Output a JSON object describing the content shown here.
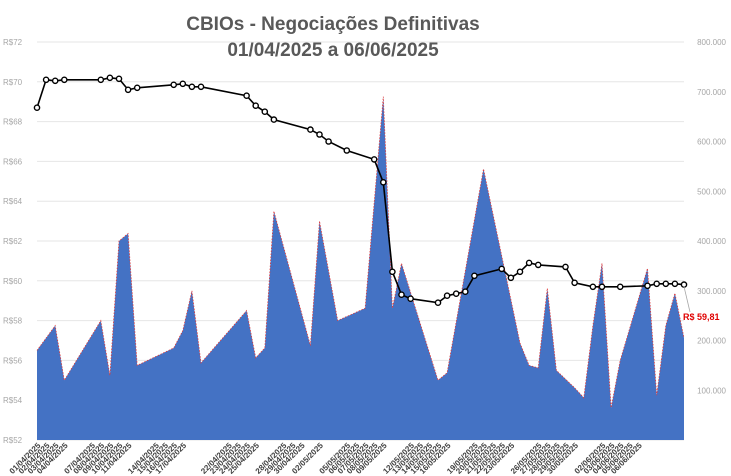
{
  "chart_data": {
    "type": "line+area",
    "title": "CBIOs - Negociações Definitivas",
    "subtitle": "01/04/2025 a 06/06/2025",
    "y_left": {
      "range": [
        52,
        72
      ],
      "ticks": [
        52,
        54,
        56,
        58,
        60,
        62,
        64,
        66,
        68,
        70,
        72
      ],
      "tick_labels": [
        "R$52",
        "R$54",
        "R$56",
        "R$58",
        "R$60",
        "R$62",
        "R$64",
        "R$66",
        "R$68",
        "R$70",
        "R$72"
      ]
    },
    "y_right": {
      "range": [
        0,
        800000
      ],
      "ticks": [
        100000,
        200000,
        300000,
        400000,
        500000,
        600000,
        700000,
        800000
      ],
      "tick_labels": [
        "100.000",
        "200.000",
        "300.000",
        "400.000",
        "500.000",
        "600.000",
        "700.000",
        "800.000"
      ]
    },
    "x": [
      "01/04/2025",
      "02/04/2025",
      "03/04/2025",
      "04/04/2025",
      "07/04/2025",
      "08/04/2025",
      "09/04/2025",
      "10/04/2025",
      "11/04/2025",
      "14/04/2025",
      "15/04/2025",
      "16/04/2025",
      "17/04/2025",
      "22/04/2025",
      "23/04/2025",
      "24/04/2025",
      "25/04/2025",
      "28/04/2025",
      "29/04/2025",
      "30/04/2025",
      "02/05/2025",
      "05/05/2025",
      "06/05/2025",
      "07/05/2025",
      "08/05/2025",
      "09/05/2025",
      "12/05/2025",
      "13/05/2025",
      "14/05/2025",
      "15/05/2025",
      "16/05/2025",
      "19/05/2025",
      "20/05/2025",
      "21/05/2025",
      "22/05/2025",
      "23/05/2025",
      "26/05/2025",
      "27/05/2025",
      "28/05/2025",
      "29/05/2025",
      "30/05/2025",
      "02/06/2025",
      "03/06/2025",
      "04/06/2025",
      "05/06/2025",
      "06/06/2025"
    ],
    "x_label_format": "dd/mm/yyyy",
    "series": [
      {
        "axis": "right",
        "style": "area",
        "color": "#4472c4",
        "edge_color": "#e03a3a",
        "points": [
          [
            "01/04/2025",
            180000
          ],
          [
            "03/04/2025",
            230000
          ],
          [
            "04/04/2025",
            120000
          ],
          [
            "08/04/2025",
            240000
          ],
          [
            "09/04/2025",
            130000
          ],
          [
            "10/04/2025",
            400000
          ],
          [
            "11/04/2025",
            415000
          ],
          [
            "12/04/2025",
            150000
          ],
          [
            "16/04/2025",
            185000
          ],
          [
            "17/04/2025",
            220000
          ],
          [
            "18/04/2025",
            300000
          ],
          [
            "19/04/2025",
            155000
          ],
          [
            "24/04/2025",
            260000
          ],
          [
            "25/04/2025",
            165000
          ],
          [
            "26/04/2025",
            185000
          ],
          [
            "27/04/2025",
            460000
          ],
          [
            "01/05/2025",
            190000
          ],
          [
            "02/05/2025",
            440000
          ],
          [
            "04/05/2025",
            240000
          ],
          [
            "07/05/2025",
            265000
          ],
          [
            "09/05/2025",
            690000
          ],
          [
            "10/05/2025",
            265000
          ],
          [
            "11/05/2025",
            355000
          ],
          [
            "15/05/2025",
            120000
          ],
          [
            "16/05/2025",
            135000
          ],
          [
            "20/05/2025",
            545000
          ],
          [
            "24/05/2025",
            195000
          ],
          [
            "25/05/2025",
            150000
          ],
          [
            "26/05/2025",
            145000
          ],
          [
            "27/05/2025",
            305000
          ],
          [
            "28/05/2025",
            140000
          ],
          [
            "30/05/2025",
            105000
          ],
          [
            "31/05/2025",
            85000
          ],
          [
            "01/06/2025",
            230000
          ],
          [
            "02/06/2025",
            355000
          ],
          [
            "03/06/2025",
            65000
          ],
          [
            "04/06/2025",
            160000
          ],
          [
            "07/06/2025",
            345000
          ],
          [
            "08/06/2025",
            90000
          ],
          [
            "09/06/2025",
            230000
          ],
          [
            "10/06/2025",
            295000
          ],
          [
            "11/06/2025",
            205000
          ]
        ]
      },
      {
        "axis": "left",
        "style": "line-markers",
        "color": "#000000",
        "points": [
          [
            "01/04/2025",
            68.7
          ],
          [
            "02/04/2025",
            70.1
          ],
          [
            "03/04/2025",
            70.05
          ],
          [
            "04/04/2025",
            70.1
          ],
          [
            "08/04/2025",
            70.1
          ],
          [
            "09/04/2025",
            70.2
          ],
          [
            "10/04/2025",
            70.15
          ],
          [
            "11/04/2025",
            69.6
          ],
          [
            "12/04/2025",
            69.7
          ],
          [
            "16/04/2025",
            69.85
          ],
          [
            "17/04/2025",
            69.9
          ],
          [
            "18/04/2025",
            69.75
          ],
          [
            "19/04/2025",
            69.75
          ],
          [
            "24/04/2025",
            69.3
          ],
          [
            "25/04/2025",
            68.8
          ],
          [
            "26/04/2025",
            68.5
          ],
          [
            "27/04/2025",
            68.1
          ],
          [
            "01/05/2025",
            67.6
          ],
          [
            "02/05/2025",
            67.35
          ],
          [
            "03/05/2025",
            67
          ],
          [
            "05/05/2025",
            66.55
          ],
          [
            "08/05/2025",
            66.1
          ],
          [
            "09/05/2025",
            64.95
          ],
          [
            "10/05/2025",
            60.45
          ],
          [
            "11/05/2025",
            59.3
          ],
          [
            "12/05/2025",
            59.1
          ],
          [
            "15/05/2025",
            58.9
          ],
          [
            "16/05/2025",
            59.25
          ],
          [
            "17/05/2025",
            59.35
          ],
          [
            "18/05/2025",
            59.45
          ],
          [
            "19/05/2025",
            60.25
          ],
          [
            "22/05/2025",
            60.6
          ],
          [
            "23/05/2025",
            60.15
          ],
          [
            "24/05/2025",
            60.45
          ],
          [
            "25/05/2025",
            60.9
          ],
          [
            "26/05/2025",
            60.8
          ],
          [
            "29/05/2025",
            60.7
          ],
          [
            "30/05/2025",
            59.9
          ],
          [
            "01/06/2025",
            59.7
          ],
          [
            "02/06/2025",
            59.7
          ],
          [
            "04/06/2025",
            59.7
          ],
          [
            "07/06/2025",
            59.75
          ],
          [
            "08/06/2025",
            59.85
          ],
          [
            "09/06/2025",
            59.85
          ],
          [
            "10/06/2025",
            59.85
          ],
          [
            "11/06/2025",
            59.81
          ]
        ]
      }
    ],
    "annotation": {
      "text": "R$ 59,81",
      "color": "#e00000"
    },
    "grid": true,
    "legend": "none"
  }
}
